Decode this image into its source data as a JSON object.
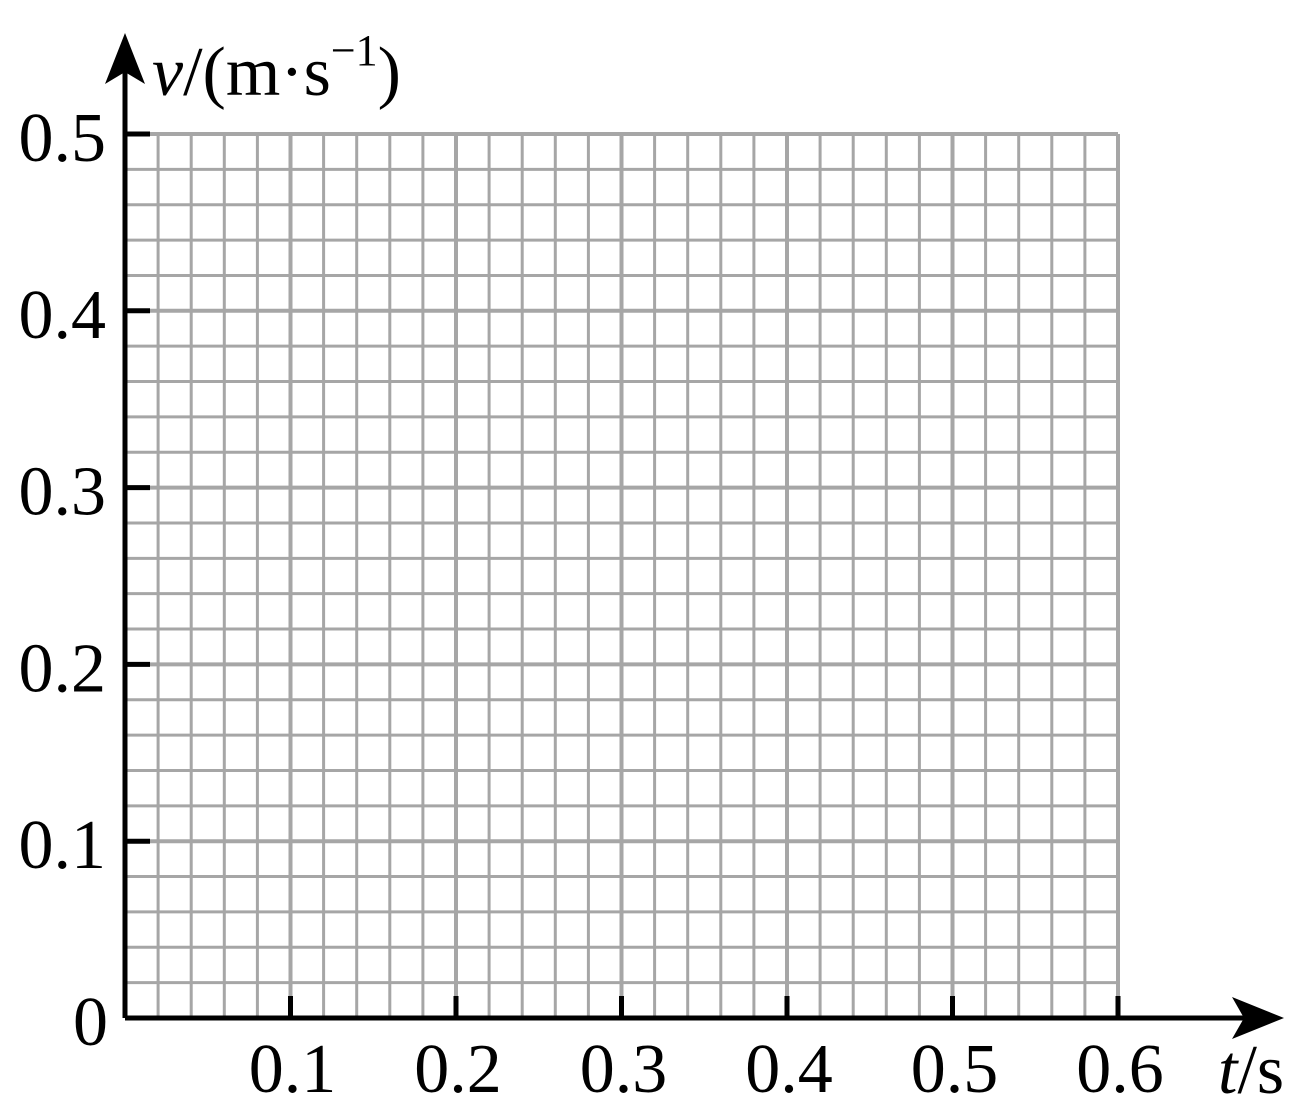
{
  "chart_data": {
    "type": "line",
    "title": "",
    "x": [],
    "series": [],
    "xlabel": {
      "symbol": "t",
      "unit": "/s"
    },
    "ylabel": {
      "symbol": "v",
      "unit_prefix": "/(m·s",
      "unit_exp": "−1",
      "unit_suffix": ")"
    },
    "xlim": [
      0,
      0.6
    ],
    "ylim": [
      0,
      0.5
    ],
    "xticks": [
      0.1,
      0.2,
      0.3,
      0.4,
      0.5,
      0.6
    ],
    "xtick_labels": [
      "0.1",
      "0.2",
      "0.3",
      "0.4",
      "0.5",
      "0.6"
    ],
    "yticks": [
      0,
      0.1,
      0.2,
      0.3,
      0.4,
      0.5
    ],
    "ytick_labels": [
      "0",
      "0.1",
      "0.2",
      "0.3",
      "0.4",
      "0.5"
    ],
    "grid": true,
    "grid_minor_step_x": 0.02,
    "grid_minor_step_y": 0.02,
    "grid_major_step_x": 0.1,
    "grid_major_step_y": 0.1,
    "grid_color": "#a6a6a6",
    "axis_color": "#000000"
  }
}
